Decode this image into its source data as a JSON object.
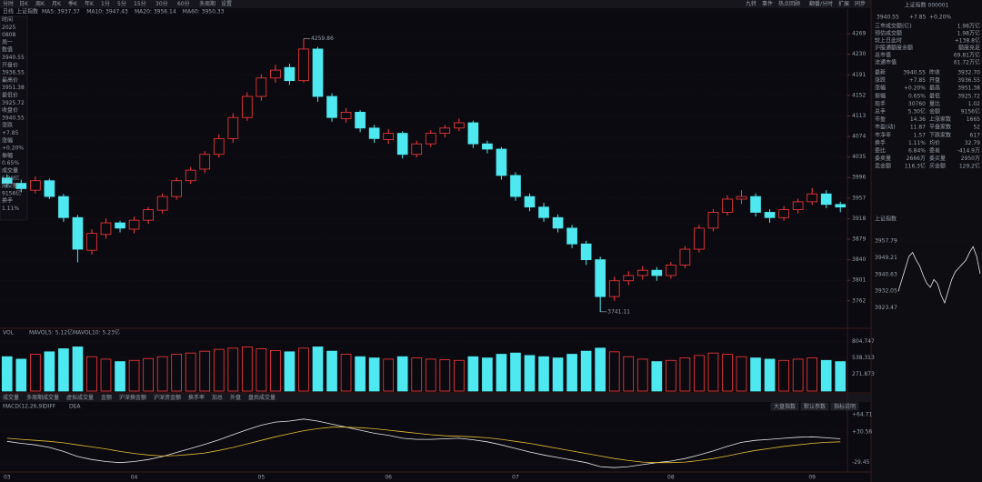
{
  "toolbar": {
    "tabs": [
      "分时",
      "日K",
      "周K",
      "月K",
      "季K",
      "年K",
      "1分",
      "5分",
      "15分",
      "30分",
      "60分",
      "多周期",
      "设置"
    ],
    "right": [
      "九转",
      "事件",
      "热点回顾",
      "翻番/分时",
      "扩展",
      "同步"
    ]
  },
  "legend": {
    "period": "日线",
    "name": "上证指数",
    "items": [
      {
        "label": "MA5: 3937.37",
        "color": "#ffffff"
      },
      {
        "label": "MA10: 3947.43",
        "color": "#f0d040"
      },
      {
        "label": "MA20: 3956.14",
        "color": "#e060e0"
      },
      {
        "label": "MA60: 3950.33",
        "color": "#40d060"
      }
    ]
  },
  "info_panel": [
    "时间",
    "2025",
    "0808",
    "周一",
    "数值",
    "3940.55",
    "开盘价",
    "3936.55",
    "最高价",
    "3951.38",
    "最低价",
    "3925.72",
    "收盘价",
    "3940.55",
    "涨跌",
    "+7.85",
    "涨幅",
    "+0.20%",
    "振幅",
    "0.65%",
    "成交量",
    "5.30亿",
    "成交额",
    "9156亿",
    "换手",
    "1.11%"
  ],
  "indicator_tabs": [
    "成交量",
    "多周期成交量",
    "虚拟成交量",
    "金额",
    "沪深换金额",
    "沪深资金额",
    "换手率",
    "加总",
    "外盘",
    "盘后成交量"
  ],
  "buttons": [
    "大盘指数",
    "默认参数",
    "指标说明"
  ],
  "chart_data": [
    {
      "type": "candlestick",
      "categories": [
        "03",
        null,
        null,
        null,
        null,
        null,
        null,
        null,
        null,
        "04",
        null,
        null,
        null,
        null,
        null,
        null,
        null,
        null,
        "05",
        null,
        null,
        null,
        null,
        null,
        null,
        null,
        null,
        "06",
        null,
        null,
        null,
        null,
        null,
        null,
        null,
        null,
        "07",
        null,
        null,
        null,
        null,
        null,
        null,
        null,
        null,
        null,
        null,
        "08",
        null,
        null,
        null,
        null,
        null,
        null,
        null,
        null,
        null,
        "09",
        null,
        null
      ],
      "open": [
        3995,
        3985,
        3972,
        3990,
        3960,
        3920,
        3858,
        3888,
        3910,
        3898,
        3915,
        3934,
        3960,
        3990,
        4012,
        4040,
        4070,
        4110,
        4150,
        4185,
        4205,
        4180,
        4240,
        4150,
        4108,
        4120,
        4090,
        4068,
        4080,
        4040,
        4060,
        4080,
        4090,
        4100,
        4060,
        4050,
        4000,
        3960,
        3940,
        3920,
        3900,
        3870,
        3840,
        3770,
        3800,
        3810,
        3820,
        3810,
        3830,
        3860,
        3900,
        3930,
        3955,
        3960,
        3930,
        3920,
        3935,
        3950,
        3965,
        3945
      ],
      "high": [
        4002,
        3992,
        3998,
        3994,
        3965,
        3925,
        3898,
        3918,
        3914,
        3922,
        3940,
        3966,
        3996,
        4016,
        4046,
        4078,
        4118,
        4158,
        4192,
        4210,
        4212,
        4259.86,
        4244,
        4156,
        4128,
        4124,
        4096,
        4088,
        4084,
        4066,
        4086,
        4096,
        4108,
        4104,
        4066,
        4054,
        4006,
        3966,
        3948,
        3926,
        3906,
        3876,
        3846,
        3808,
        3818,
        3828,
        3826,
        3836,
        3866,
        3906,
        3936,
        3962,
        3972,
        3966,
        3936,
        3942,
        3956,
        3976,
        3972,
        3950
      ],
      "low": [
        3978,
        3968,
        3966,
        3955,
        3912,
        3835,
        3850,
        3880,
        3892,
        3890,
        3908,
        3928,
        3954,
        3984,
        4004,
        4034,
        4062,
        4104,
        4142,
        4176,
        4172,
        4176,
        4140,
        4102,
        4100,
        4082,
        4062,
        4060,
        4032,
        4034,
        4054,
        4072,
        4084,
        4052,
        4042,
        3992,
        3952,
        3932,
        3912,
        3892,
        3862,
        3830,
        3741.11,
        3762,
        3792,
        3802,
        3800,
        3804,
        3824,
        3854,
        3894,
        3924,
        3946,
        3922,
        3910,
        3914,
        3928,
        3944,
        3938,
        3930
      ],
      "close": [
        3985,
        3975,
        3990,
        3960,
        3920,
        3860,
        3890,
        3910,
        3900,
        3915,
        3935,
        3960,
        3990,
        4010,
        4040,
        4070,
        4110,
        4150,
        4185,
        4200,
        4180,
        4240,
        4150,
        4110,
        4120,
        4090,
        4070,
        4080,
        4040,
        4060,
        4080,
        4090,
        4100,
        4060,
        4050,
        4000,
        3960,
        3940,
        3920,
        3900,
        3870,
        3840,
        3770,
        3800,
        3810,
        3820,
        3810,
        3830,
        3860,
        3900,
        3930,
        3955,
        3960,
        3930,
        3920,
        3935,
        3950,
        3965,
        3945,
        3940
      ],
      "up_color": "#ff3a3a",
      "down_color": "#4ee8f0",
      "ylim": [
        3715,
        4302
      ],
      "yticks": [
        4269,
        4230,
        4191,
        4152,
        4113,
        4074,
        4035,
        3996,
        3957,
        3918,
        3879,
        3840,
        3801,
        3762
      ],
      "grid": true
    },
    {
      "type": "bar",
      "title": "VOL",
      "legend": [
        "MAVOL5: 5.12亿",
        "MAVOL10: 5.23亿"
      ],
      "values": [
        560,
        520,
        600,
        640,
        690,
        720,
        560,
        520,
        480,
        500,
        530,
        560,
        600,
        620,
        650,
        680,
        700,
        720,
        690,
        660,
        640,
        700,
        720,
        650,
        600,
        560,
        540,
        520,
        560,
        540,
        520,
        510,
        500,
        560,
        540,
        600,
        620,
        580,
        560,
        540,
        600,
        650,
        700,
        640,
        560,
        520,
        480,
        500,
        540,
        580,
        620,
        600,
        560,
        540,
        520,
        500,
        520,
        540,
        500,
        480
      ],
      "ylim": [
        0,
        860
      ],
      "yticks": [
        271.873,
        538.313,
        804.747
      ]
    },
    {
      "type": "line",
      "title": "MACD(12,26,9)",
      "series": [
        {
          "name": "DIFF",
          "color": "#e8e8e8",
          "values": [
            12,
            8,
            5,
            0,
            -8,
            -18,
            -24,
            -28,
            -30,
            -28,
            -24,
            -18,
            -10,
            -2,
            6,
            15,
            25,
            35,
            44,
            50,
            52,
            56,
            52,
            46,
            40,
            34,
            28,
            24,
            18,
            16,
            16,
            17,
            18,
            15,
            11,
            5,
            -2,
            -9,
            -15,
            -20,
            -25,
            -30,
            -38,
            -40,
            -38,
            -34,
            -30,
            -27,
            -22,
            -15,
            -7,
            2,
            10,
            14,
            16,
            18,
            20,
            21,
            19,
            17
          ]
        },
        {
          "name": "DEA",
          "color": "#e8c030",
          "values": [
            18,
            16,
            14,
            12,
            9,
            5,
            1,
            -3,
            -8,
            -12,
            -15,
            -17,
            -16,
            -14,
            -11,
            -6,
            0,
            7,
            14,
            21,
            27,
            33,
            37,
            40,
            40,
            39,
            37,
            34,
            31,
            28,
            25,
            23,
            22,
            21,
            19,
            16,
            12,
            8,
            3,
            -2,
            -7,
            -12,
            -17,
            -22,
            -26,
            -29,
            -30,
            -30,
            -29,
            -26,
            -22,
            -17,
            -11,
            -6,
            -2,
            2,
            5,
            8,
            10,
            11
          ]
        }
      ],
      "ylim": [
        -45,
        70
      ],
      "yticks": [
        {
          "value": 64.71,
          "label": "+64.71"
        },
        {
          "value": 30.56,
          "label": "+30.56"
        },
        {
          "value": -29.45,
          "label": "-29.45"
        }
      ]
    },
    {
      "type": "line",
      "title": "上证指数",
      "values": [
        3932,
        3938,
        3944,
        3950,
        3952,
        3948,
        3945,
        3940,
        3936,
        3934,
        3938,
        3936,
        3930,
        3926,
        3932,
        3938,
        3942,
        3944,
        3946,
        3948,
        3952,
        3955,
        3950,
        3941
      ],
      "color": "#e8e8e8",
      "ylim": [
        3918,
        3964
      ],
      "yticks": [
        3957.79,
        3949.21,
        3940.63,
        3932.05,
        3923.47
      ]
    }
  ],
  "sidebar": {
    "title": "上证指数 000001",
    "price": "3940.55",
    "change": "+7.85",
    "pct": "+0.20%",
    "rows": [
      [
        "三市成交额(亿)",
        "1.98万亿"
      ],
      [
        "预估成交额",
        "1.98万亿"
      ],
      [
        "较上日此时",
        "+138.8亿"
      ],
      [
        "沪股通额度余额",
        "额度充足"
      ],
      [
        "总市值",
        "69.81万亿"
      ],
      [
        "流通市值",
        "61.72万亿"
      ]
    ],
    "grid": [
      [
        "最新",
        "3940.55",
        "昨收",
        "3932.70"
      ],
      [
        "涨跌",
        "+7.85",
        "开盘",
        "3936.55"
      ],
      [
        "涨幅",
        "+0.20%",
        "最高",
        "3951.38"
      ],
      [
        "振幅",
        "0.65%",
        "最低",
        "3925.72"
      ],
      [
        "现手",
        "30760",
        "量比",
        "1.02"
      ],
      [
        "总手",
        "5.30亿",
        "金额",
        "9156亿"
      ],
      [
        "市盈",
        "14.36",
        "上涨家数",
        "1665"
      ],
      [
        "市盈(动)",
        "11.87",
        "平盘家数",
        "52"
      ],
      [
        "市净率",
        "1.57",
        "下跌家数",
        "617"
      ],
      [
        "换手",
        "1.11%",
        "均价",
        "32.79"
      ],
      [
        "委比",
        "6.84%",
        "委差",
        "-414.9万"
      ],
      [
        "委卖量",
        "2666万",
        "委买量",
        "2950万"
      ],
      [
        "卖金额",
        "116.3亿",
        "买金额",
        "129.2亿"
      ]
    ]
  }
}
